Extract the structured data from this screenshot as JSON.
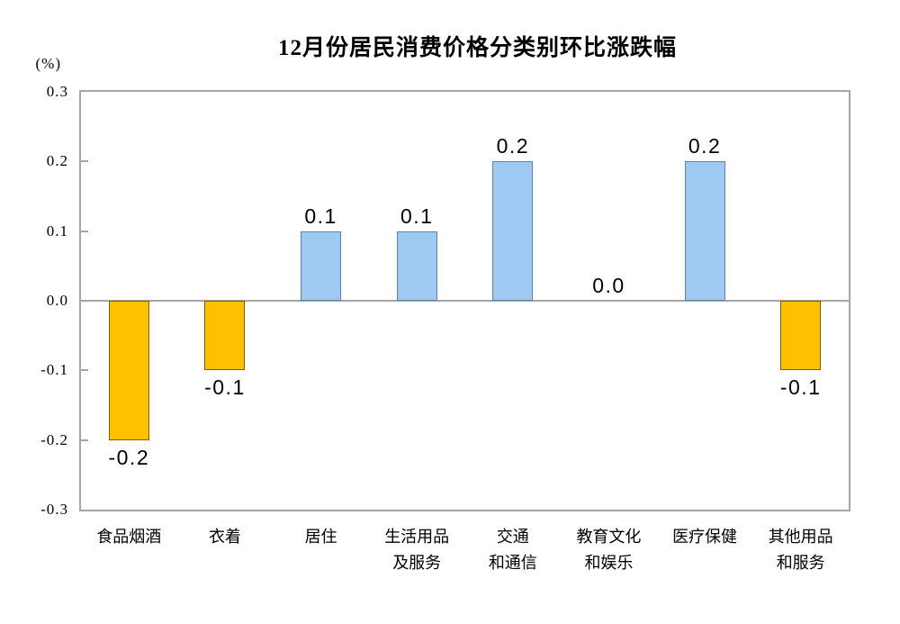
{
  "chart_data": {
    "type": "bar",
    "title": "12月份居民消费价格分类别环比涨跌幅",
    "unit_label": "(%)",
    "categories": [
      [
        "食品烟酒"
      ],
      [
        "衣着"
      ],
      [
        "居住"
      ],
      [
        "生活用品",
        "及服务"
      ],
      [
        "交通",
        "和通信"
      ],
      [
        "教育文化",
        "和娱乐"
      ],
      [
        "医疗保健"
      ],
      [
        "其他用品",
        "和服务"
      ]
    ],
    "values": [
      -0.2,
      -0.1,
      0.1,
      0.1,
      0.2,
      0.0,
      0.2,
      -0.1
    ],
    "value_labels": [
      "-0.2",
      "-0.1",
      "0.1",
      "0.1",
      "0.2",
      "0.0",
      "0.2",
      "-0.1"
    ],
    "y_tick_values": [
      0.3,
      0.2,
      0.1,
      0.0,
      -0.1,
      -0.2,
      -0.3
    ],
    "y_tick_labels": [
      "0.3",
      "0.2",
      "0.1",
      "0.0",
      "-0.1",
      "-0.2",
      "-0.3"
    ],
    "ylim": [
      -0.3,
      0.3
    ],
    "grid": false,
    "legend": "none",
    "colors": {
      "positive_fill": "#9DC9F2",
      "positive_border": "#5B84A8",
      "negative_fill": "#FFC000",
      "negative_border": "#7F6000",
      "axis": "#A6A6A6",
      "text": "#000000",
      "background": "#FFFFFF"
    }
  }
}
